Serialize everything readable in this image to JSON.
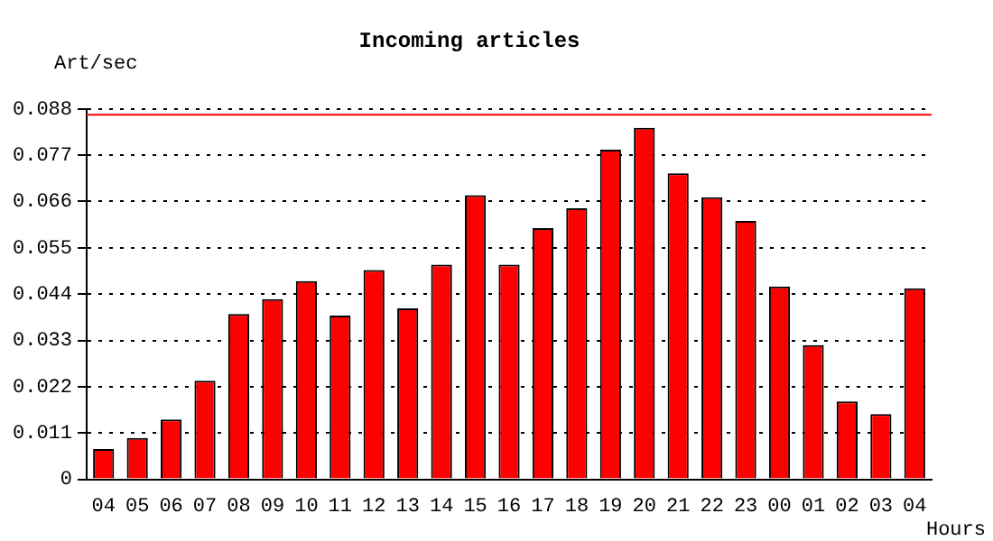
{
  "chart_data": {
    "type": "bar",
    "title": "Incoming articles",
    "xlabel": "Hours",
    "ylabel": "Art/sec",
    "categories": [
      "04",
      "05",
      "06",
      "07",
      "08",
      "09",
      "10",
      "11",
      "12",
      "13",
      "14",
      "15",
      "16",
      "17",
      "18",
      "19",
      "20",
      "21",
      "22",
      "23",
      "00",
      "01",
      "02",
      "03",
      "04"
    ],
    "series": [
      {
        "color": "#ff0000",
        "values": [
          0.0072,
          0.0098,
          0.0142,
          0.0234,
          0.0393,
          0.0428,
          0.0471,
          0.0389,
          0.0497,
          0.0406,
          0.051,
          0.0675,
          0.051,
          0.0597,
          0.0644,
          0.0783,
          0.0835,
          0.0727,
          0.067,
          0.0614,
          0.0458,
          0.0319,
          0.0185,
          0.0155,
          0.0454
        ]
      }
    ],
    "ylim": [
      0,
      0.088
    ],
    "yticks": [
      0,
      0.011,
      0.022,
      0.033,
      0.044,
      0.055,
      0.066,
      0.077,
      0.088
    ],
    "grid": "y",
    "legend": false,
    "ref_lines": [
      {
        "axis": "y",
        "value": 0.0866,
        "color": "#ff0000"
      }
    ]
  }
}
